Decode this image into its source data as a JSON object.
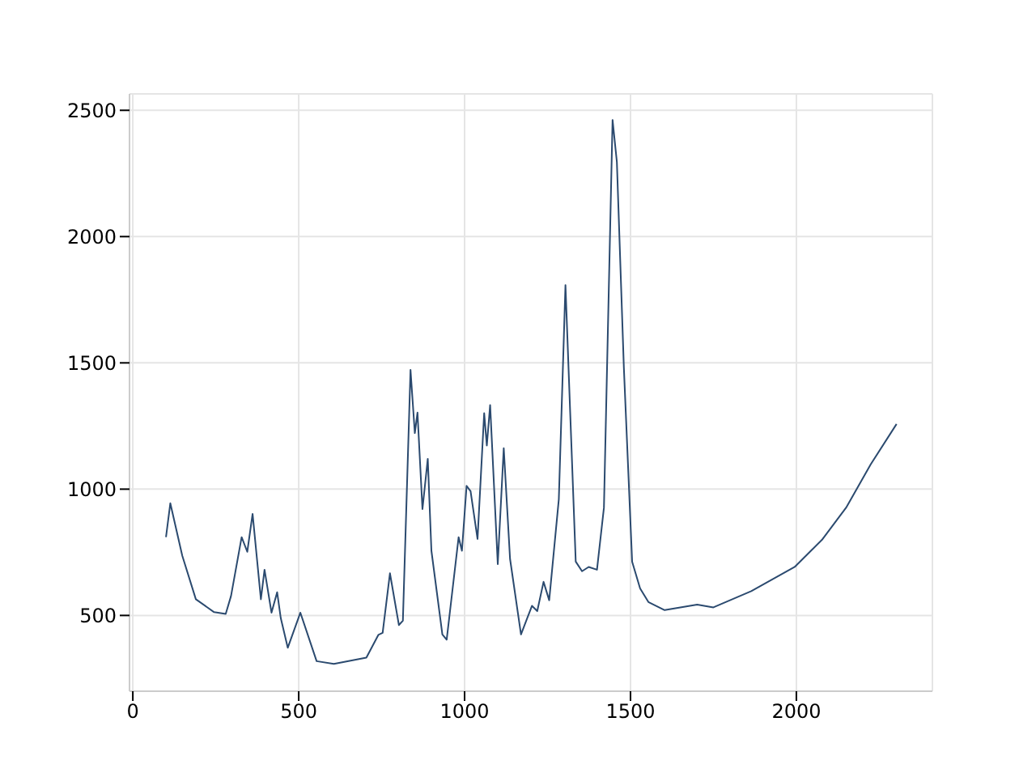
{
  "chart_data": {
    "type": "line",
    "x": [
      100,
      113,
      149,
      190,
      245,
      280,
      296,
      328,
      345,
      361,
      386,
      397,
      418,
      435,
      446,
      467,
      505,
      554,
      606,
      704,
      740,
      753,
      775,
      802,
      814,
      837,
      850,
      858,
      873,
      889,
      900,
      933,
      946,
      982,
      992,
      1006,
      1018,
      1039,
      1059,
      1067,
      1077,
      1100,
      1118,
      1137,
      1170,
      1203,
      1219,
      1238,
      1255,
      1284,
      1304,
      1335,
      1354,
      1374,
      1399,
      1420,
      1446,
      1459,
      1480,
      1505,
      1529,
      1554,
      1603,
      1701,
      1750,
      1864,
      1995,
      2077,
      2150,
      2224,
      2302
    ],
    "series": [
      {
        "color": "#2b4a6f",
        "values": [
          810,
          944,
          737,
          564,
          513,
          506,
          577,
          810,
          752,
          902,
          564,
          681,
          511,
          592,
          489,
          372,
          511,
          319,
          308,
          333,
          423,
          431,
          667,
          462,
          479,
          1472,
          1222,
          1303,
          921,
          1120,
          756,
          425,
          404,
          810,
          756,
          1013,
          992,
          803,
          1301,
          1173,
          1333,
          703,
          1162,
          724,
          425,
          538,
          517,
          633,
          560,
          960,
          1808,
          713,
          675,
          692,
          681,
          927,
          2462,
          2295,
          1483,
          713,
          607,
          553,
          521,
          543,
          532,
          596,
          692,
          799,
          927,
          1098,
          1258
        ]
      }
    ],
    "xlim": [
      -10,
      2410
    ],
    "ylim": [
      200,
      2565
    ],
    "xticks": [
      0,
      500,
      1000,
      1500,
      2000
    ],
    "yticks": [
      500,
      1000,
      1500,
      2000,
      2500
    ],
    "grid": true,
    "marker": "none",
    "line_style": "solid"
  }
}
